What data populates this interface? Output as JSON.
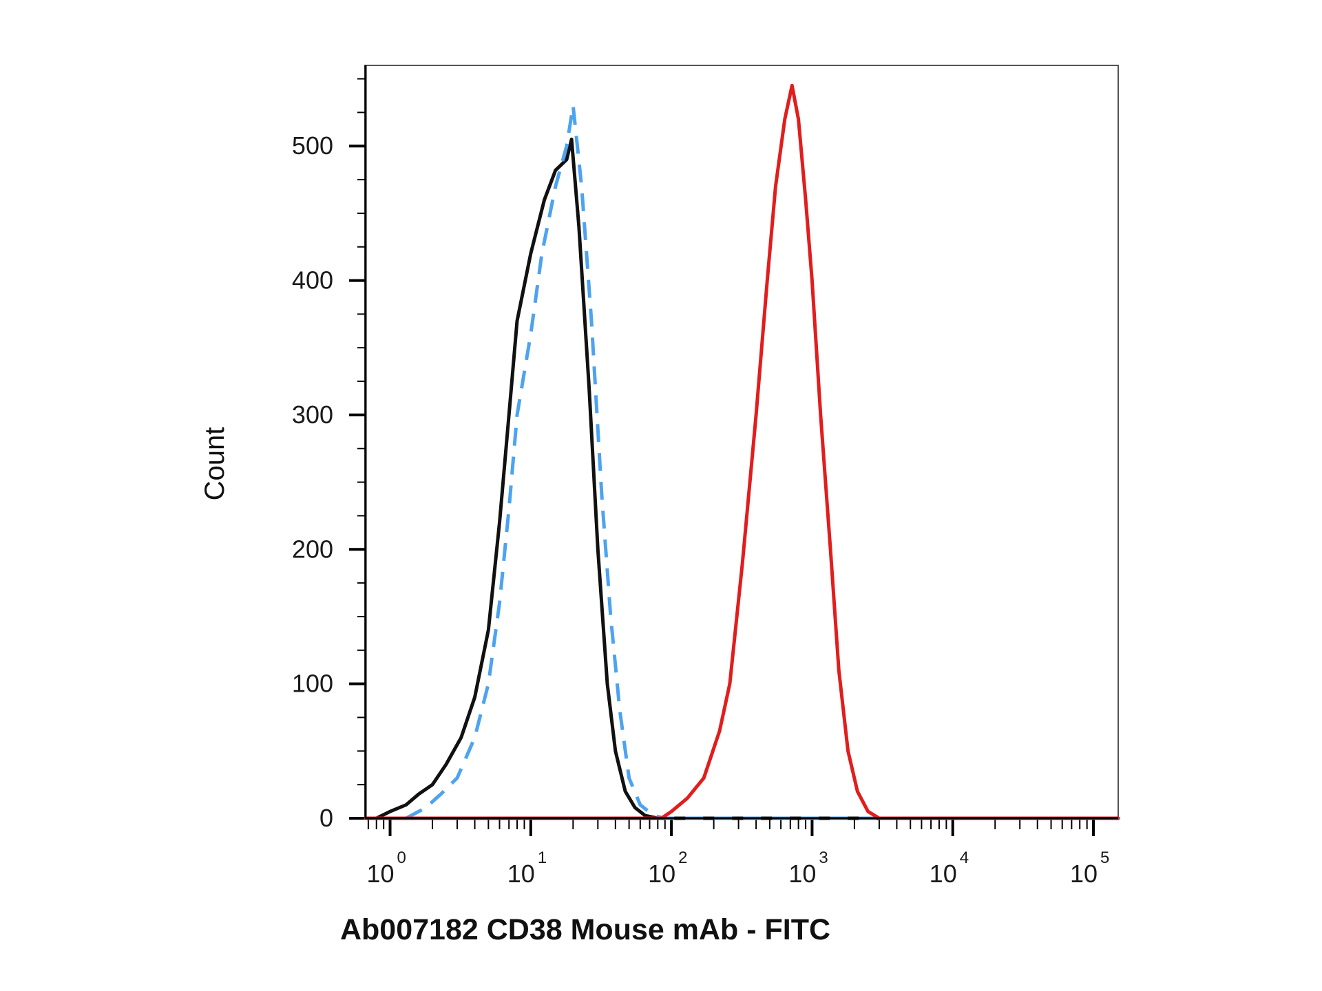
{
  "chart_data": {
    "type": "line",
    "title": "",
    "xlabel": "Ab007182 CD38 Mouse mAb - FITC",
    "ylabel": "Count",
    "xscale": "log",
    "xlim": [
      0.67,
      150000
    ],
    "ylim": [
      0,
      560
    ],
    "x_ticks": [
      {
        "base": "10",
        "exp": "0",
        "value": 1
      },
      {
        "base": "10",
        "exp": "1",
        "value": 10
      },
      {
        "base": "10",
        "exp": "2",
        "value": 100
      },
      {
        "base": "10",
        "exp": "3",
        "value": 1000
      },
      {
        "base": "10",
        "exp": "4",
        "value": 10000
      },
      {
        "base": "10",
        "exp": "5",
        "value": 100000
      }
    ],
    "y_ticks": [
      0,
      100,
      200,
      300,
      400,
      500
    ],
    "grid": false,
    "legend": "none",
    "series": [
      {
        "color": "#111111",
        "style": "solid",
        "points": [
          [
            0.8,
            0
          ],
          [
            1.0,
            5
          ],
          [
            1.3,
            10
          ],
          [
            1.6,
            18
          ],
          [
            2.0,
            25
          ],
          [
            2.5,
            40
          ],
          [
            3.2,
            60
          ],
          [
            4.0,
            90
          ],
          [
            5.0,
            140
          ],
          [
            6.0,
            220
          ],
          [
            7.0,
            300
          ],
          [
            8.0,
            370
          ],
          [
            10.0,
            420
          ],
          [
            12.5,
            460
          ],
          [
            15.0,
            482
          ],
          [
            18.0,
            490
          ],
          [
            19.5,
            505
          ],
          [
            22.0,
            440
          ],
          [
            26.0,
            320
          ],
          [
            30.0,
            200
          ],
          [
            35.0,
            100
          ],
          [
            40.0,
            50
          ],
          [
            47.0,
            20
          ],
          [
            55.0,
            8
          ],
          [
            65.0,
            2
          ],
          [
            80.0,
            0
          ],
          [
            150000,
            0
          ]
        ]
      },
      {
        "color": "#4da3f0",
        "style": "dashed",
        "points": [
          [
            1.3,
            0
          ],
          [
            1.8,
            8
          ],
          [
            2.3,
            18
          ],
          [
            3.0,
            30
          ],
          [
            4.0,
            60
          ],
          [
            5.0,
            100
          ],
          [
            6.0,
            160
          ],
          [
            7.0,
            230
          ],
          [
            8.0,
            300
          ],
          [
            10.0,
            360
          ],
          [
            12.0,
            420
          ],
          [
            15.0,
            470
          ],
          [
            18.0,
            500
          ],
          [
            20.0,
            530
          ],
          [
            23.0,
            470
          ],
          [
            27.0,
            370
          ],
          [
            32.0,
            240
          ],
          [
            37.0,
            150
          ],
          [
            43.0,
            80
          ],
          [
            50.0,
            30
          ],
          [
            60.0,
            10
          ],
          [
            75.0,
            2
          ],
          [
            90.0,
            0
          ],
          [
            150000,
            0
          ]
        ]
      },
      {
        "color": "#e11d1d",
        "style": "solid",
        "points": [
          [
            0.67,
            0
          ],
          [
            85,
            0
          ],
          [
            100,
            5
          ],
          [
            130,
            15
          ],
          [
            170,
            30
          ],
          [
            220,
            65
          ],
          [
            260,
            100
          ],
          [
            320,
            190
          ],
          [
            400,
            300
          ],
          [
            480,
            400
          ],
          [
            550,
            470
          ],
          [
            640,
            520
          ],
          [
            720,
            545
          ],
          [
            800,
            520
          ],
          [
            900,
            460
          ],
          [
            1000,
            400
          ],
          [
            1150,
            300
          ],
          [
            1350,
            200
          ],
          [
            1550,
            110
          ],
          [
            1800,
            50
          ],
          [
            2100,
            20
          ],
          [
            2500,
            5
          ],
          [
            3000,
            0
          ],
          [
            150000,
            0
          ]
        ]
      }
    ]
  }
}
